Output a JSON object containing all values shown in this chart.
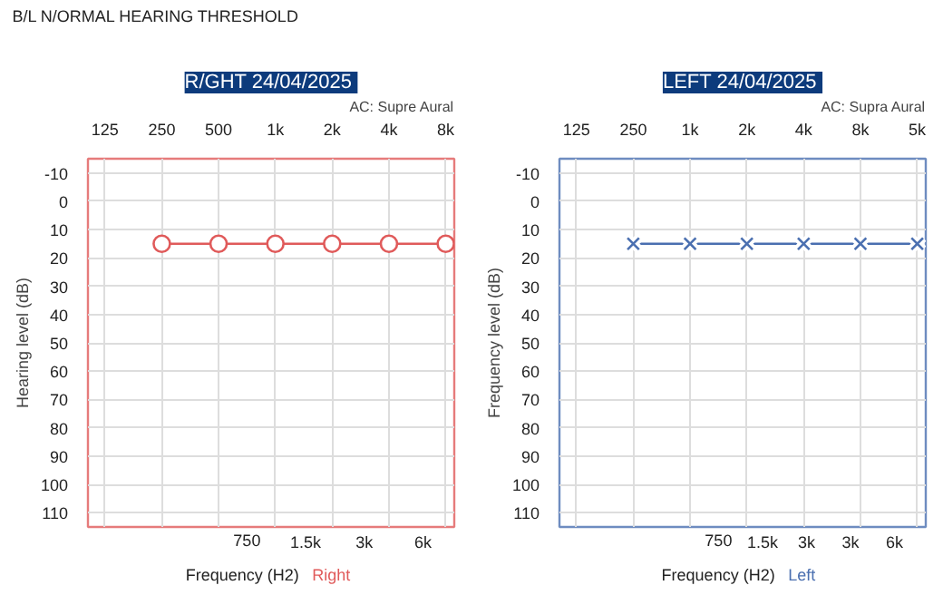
{
  "chart_data": [
    {
      "type": "other",
      "title": "B/L N/ORMAL HEARING THRESHOLD"
    },
    {
      "type": "line",
      "title": "R/GHT  24/04/2025",
      "subtitle": "AC: Supre Aural",
      "annotations": [
        "750",
        "1.5k",
        "3k",
        "6k"
      ],
      "xlabel": "Frequency (H2)",
      "ylabel": "Hearing level (dB)",
      "ylim": [
        115,
        -15
      ],
      "categories": [
        "125",
        "250",
        "500",
        "1k",
        "2k",
        "4k",
        "8k"
      ],
      "yticks": [
        -10,
        0,
        10,
        20,
        30,
        40,
        50,
        60,
        70,
        80,
        90,
        100,
        110
      ],
      "grid": true,
      "marker": "circle",
      "line_style": "solid",
      "series": [
        {
          "name": "Right",
          "color": "#e05a5a",
          "values": [
            null,
            15,
            15,
            15,
            15,
            15,
            15
          ]
        }
      ]
    },
    {
      "type": "line",
      "title": "LEFT  24/04/2025",
      "subtitle": "AC: Supra Aural",
      "annotations": [
        "750",
        "1.5k",
        "3k",
        "3k",
        "6k"
      ],
      "xlabel": "Frequency (H2)",
      "ylabel": "Frequency level (dB)",
      "ylim": [
        115,
        -15
      ],
      "categories": [
        "125",
        "250",
        "1k",
        "2k",
        "4k",
        "8k",
        "5k"
      ],
      "yticks": [
        -10,
        0,
        10,
        20,
        30,
        40,
        50,
        60,
        70,
        80,
        90,
        100,
        110
      ],
      "grid": true,
      "marker": "cross",
      "line_style": "solid",
      "series": [
        {
          "name": "Left",
          "color": "#4a6fb0",
          "values": [
            null,
            15,
            15,
            15,
            15,
            15,
            15
          ]
        }
      ]
    }
  ]
}
